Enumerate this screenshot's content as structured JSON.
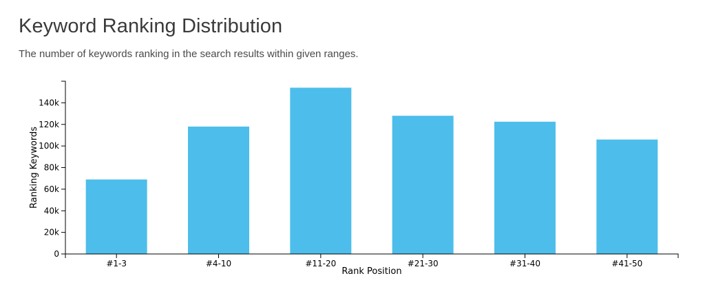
{
  "header": {
    "title": "Keyword Ranking Distribution",
    "subtitle": "The number of keywords ranking in the search results within given ranges."
  },
  "chart_data": {
    "type": "bar",
    "title": "Keyword Ranking Distribution",
    "subtitle": "The number of keywords ranking in the search results within given ranges.",
    "xlabel": "Rank Position",
    "ylabel": "Ranking Keywords",
    "categories": [
      "#1-3",
      "#4-10",
      "#11-20",
      "#21-30",
      "#31-40",
      "#41-50"
    ],
    "values": [
      69000,
      118000,
      154000,
      128000,
      122500,
      106000
    ],
    "ylim": [
      0,
      160000
    ],
    "yticks": [
      0,
      20000,
      40000,
      60000,
      80000,
      100000,
      120000,
      140000
    ],
    "ytick_labels": [
      "0",
      "20k",
      "40k",
      "60k",
      "80k",
      "100k",
      "120k",
      "140k"
    ],
    "bar_color": "#4dbeeb",
    "grid": false,
    "legend": "none"
  }
}
